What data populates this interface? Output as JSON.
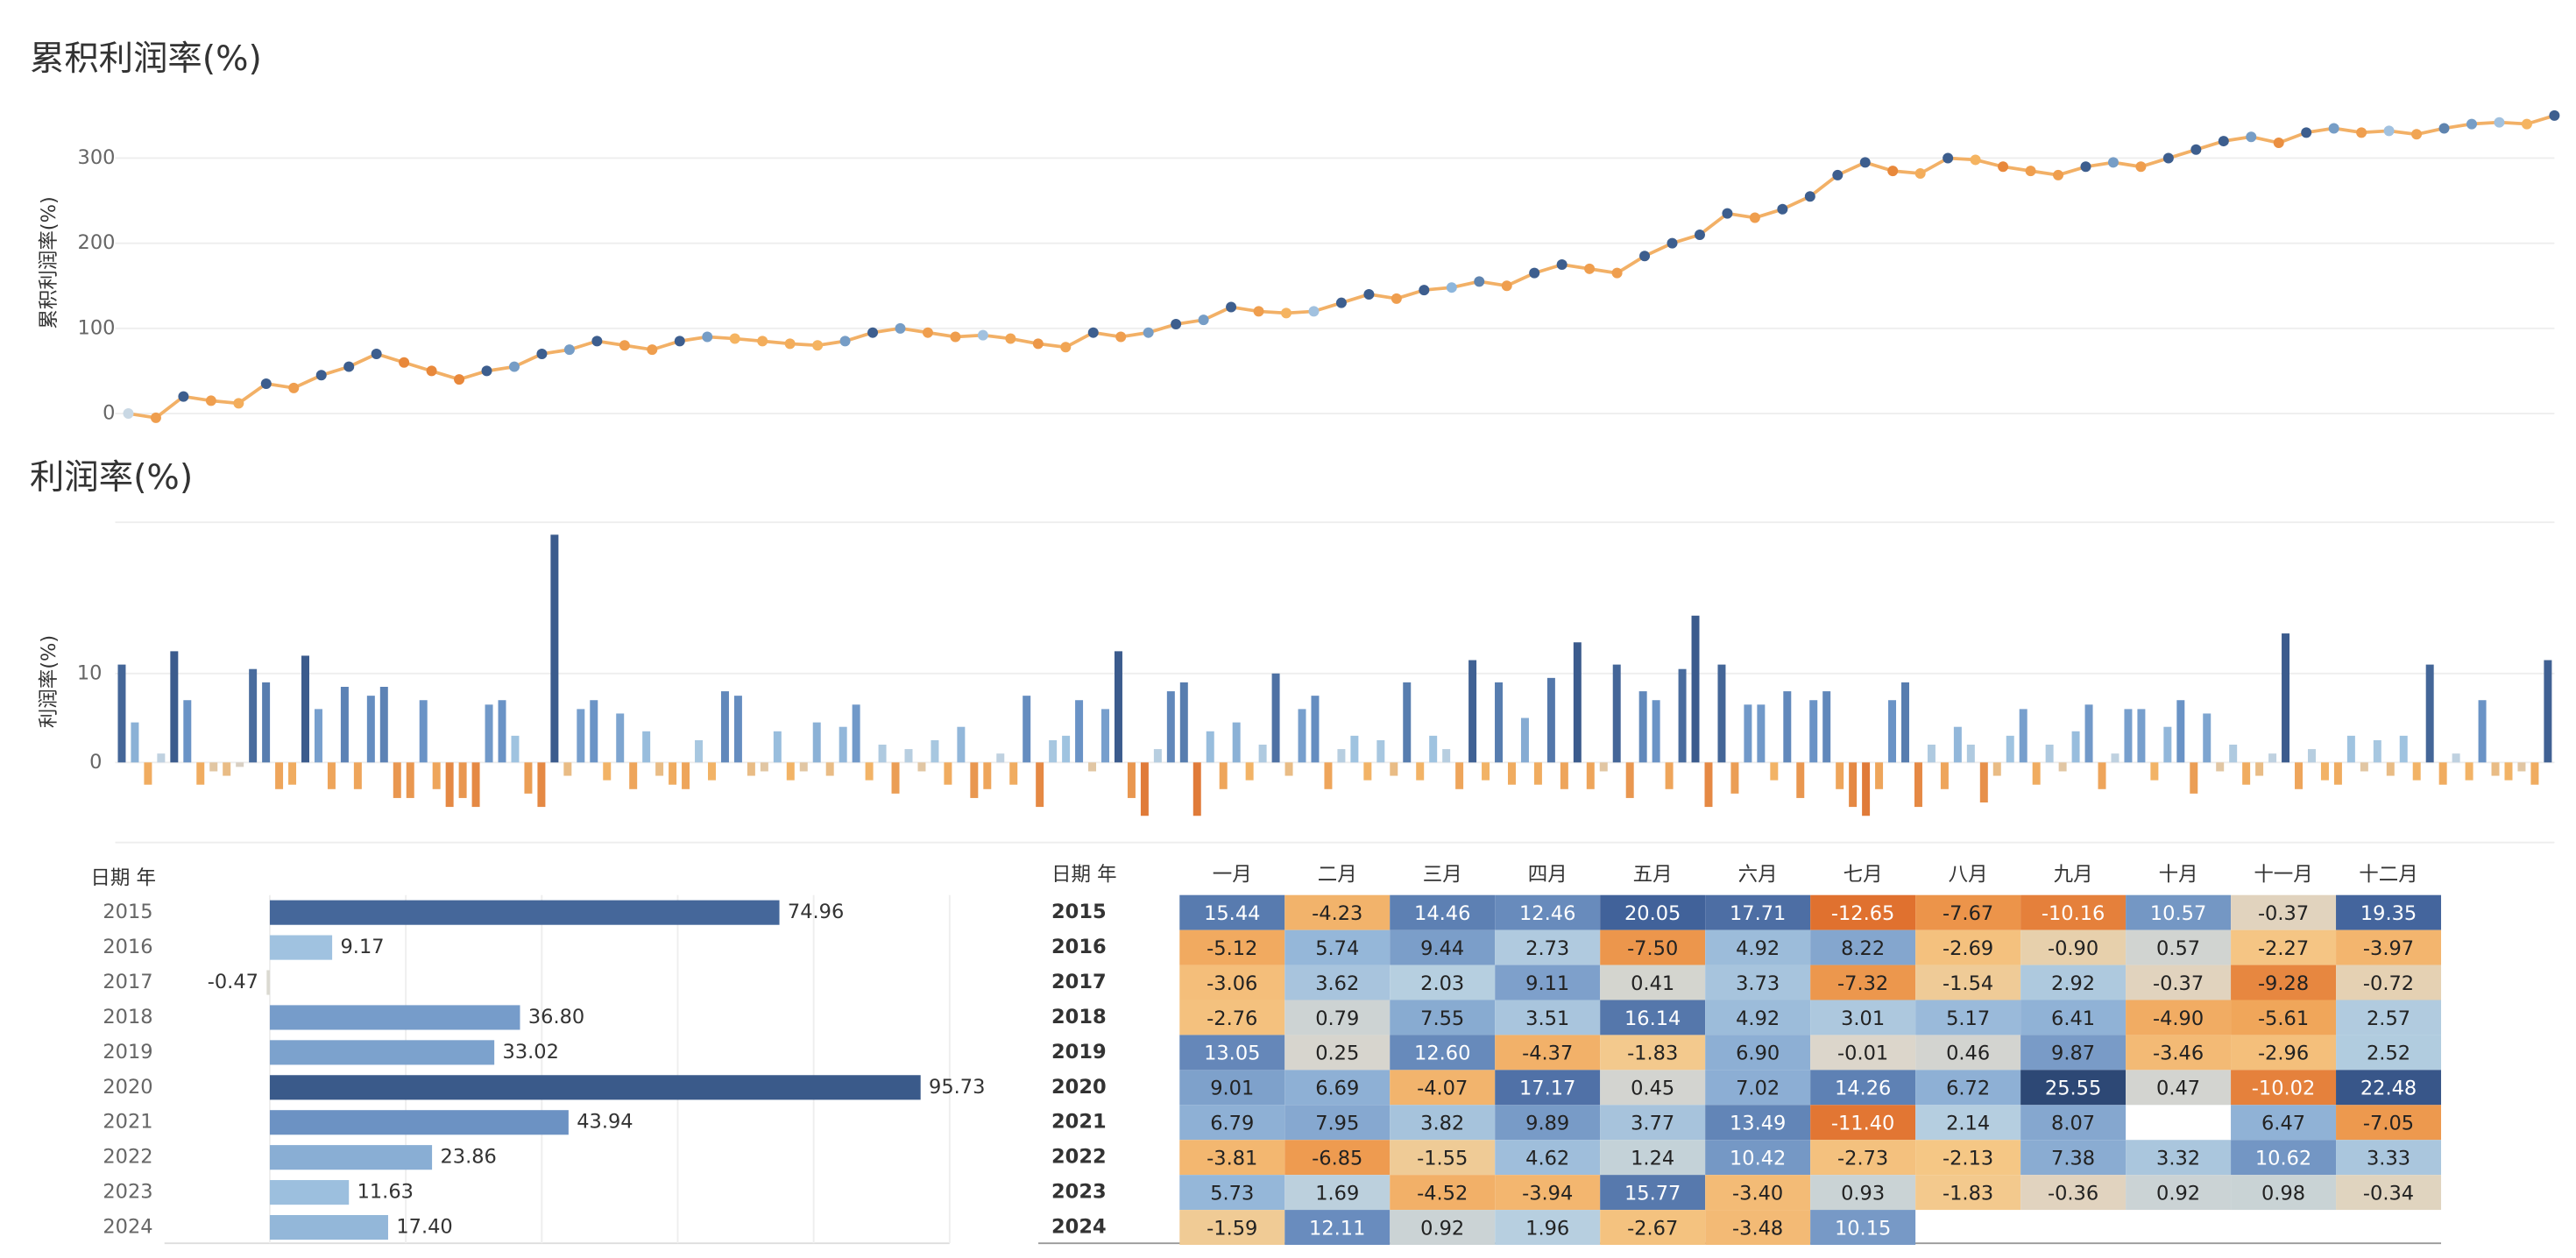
{
  "chart_data": [
    {
      "type": "line",
      "title": "累积利润率(%)",
      "y_label": "累积利润率(%)",
      "ylim": [
        -12,
        370
      ],
      "yticks": [
        0,
        100,
        200,
        300
      ],
      "grid": true,
      "color_scale": [
        {
          "value": -8,
          "color": "#e8883b"
        },
        {
          "value": -2,
          "color": "#f5b461"
        },
        {
          "value": 0,
          "color": "#c9d8e4"
        },
        {
          "value": 3,
          "color": "#8db6dc"
        },
        {
          "value": 10,
          "color": "#3d5e8e"
        }
      ],
      "values": [
        0,
        -5,
        20,
        15,
        12,
        35,
        30,
        45,
        55,
        70,
        60,
        50,
        40,
        50,
        55,
        70,
        75,
        85,
        80,
        75,
        85,
        90,
        88,
        85,
        82,
        80,
        85,
        95,
        100,
        95,
        90,
        92,
        88,
        82,
        78,
        95,
        90,
        95,
        105,
        110,
        125,
        120,
        118,
        120,
        130,
        140,
        135,
        145,
        148,
        155,
        150,
        165,
        175,
        170,
        165,
        185,
        200,
        210,
        235,
        230,
        240,
        255,
        280,
        295,
        285,
        282,
        300,
        298,
        290,
        285,
        280,
        290,
        295,
        290,
        300,
        310,
        320,
        325,
        318,
        330,
        335,
        330,
        332,
        328,
        335,
        340,
        342,
        340,
        350
      ]
    },
    {
      "type": "bar",
      "title": "利润率(%)",
      "y_label": "利润率(%)",
      "ylim": [
        -9,
        27
      ],
      "yticks": [
        0,
        10
      ],
      "grid": true,
      "color_scale": [
        {
          "value": -6,
          "color": "#e07b39"
        },
        {
          "value": -2,
          "color": "#f2b366"
        },
        {
          "value": 0,
          "color": "#cfd8e0"
        },
        {
          "value": 3,
          "color": "#9fc3e0"
        },
        {
          "value": 7,
          "color": "#6a93c6"
        },
        {
          "value": 12,
          "color": "#3b5b8d"
        }
      ],
      "values": [
        11,
        4.5,
        -2.5,
        1,
        12.5,
        7,
        -2.5,
        -1,
        -1.5,
        -0.5,
        10.5,
        9,
        -3,
        -2.5,
        12,
        6,
        -3,
        8.5,
        -3,
        7.5,
        8.5,
        -4,
        -4,
        7,
        -3,
        -5,
        -4,
        -5,
        6.5,
        7,
        3,
        -3.5,
        -5,
        25.6,
        -1.5,
        6,
        7,
        -2,
        5.5,
        -3,
        3.5,
        -1.5,
        -2.5,
        -3,
        2.5,
        -2,
        8,
        7.5,
        -1.5,
        -1,
        3.5,
        -2,
        -1,
        4.5,
        -1.5,
        4,
        6.5,
        -2,
        2,
        -3.5,
        1.5,
        -1,
        2.5,
        -2.5,
        4,
        -4,
        -3,
        1,
        -2.5,
        7.5,
        -5,
        2.5,
        3,
        7,
        -1,
        6,
        12.5,
        -4,
        -6,
        1.5,
        8,
        9,
        -6,
        3.5,
        -3,
        4.5,
        -2,
        2,
        10,
        -1.5,
        6,
        7.5,
        -3,
        1.5,
        3,
        -2,
        2.5,
        -1.5,
        9,
        -2,
        3,
        1.5,
        -3,
        11.5,
        -2,
        9,
        -2.5,
        5,
        -2.5,
        9.5,
        -3,
        13.5,
        -3,
        -1,
        11,
        -4,
        8,
        7,
        -3,
        10.5,
        16.5,
        -5,
        11,
        -3.5,
        6.5,
        6.5,
        -2,
        8,
        -4,
        7,
        8,
        -3,
        -5,
        -6,
        -3,
        7,
        9,
        -5,
        2,
        -3,
        4,
        2,
        -4.5,
        -1.5,
        3,
        6,
        -2.5,
        2,
        -1,
        3.5,
        6.5,
        -3,
        1,
        6,
        6,
        -2,
        4,
        7,
        -3.5,
        5.5,
        -1,
        2,
        -2.5,
        -1.5,
        1,
        14.5,
        -3,
        1.5,
        -2,
        -2.5,
        3,
        -1,
        2.5,
        -1.5,
        3,
        -2,
        11,
        -2.5,
        1,
        -2,
        7,
        -1.5,
        -2,
        -1,
        -2.5,
        11.5
      ]
    },
    {
      "type": "hbar",
      "header": "日期 年",
      "categories": [
        "2015",
        "2016",
        "2017",
        "2018",
        "2019",
        "2020",
        "2021",
        "2022",
        "2023",
        "2024"
      ],
      "values": [
        74.96,
        9.17,
        -0.47,
        36.8,
        33.02,
        95.73,
        43.94,
        23.86,
        11.63,
        17.4
      ],
      "value_labels": [
        "74.96",
        "9.17",
        "-0.47",
        "36.80",
        "33.02",
        "95.73",
        "43.94",
        "23.86",
        "11.63",
        "17.40"
      ],
      "xlim": [
        -15.5,
        100
      ],
      "xticks": [
        0,
        20,
        40,
        60,
        80,
        100
      ],
      "color_scale": [
        {
          "value": -1,
          "color": "#e0dccf"
        },
        {
          "value": 5,
          "color": "#a6c8e3"
        },
        {
          "value": 40,
          "color": "#7198c8"
        },
        {
          "value": 75,
          "color": "#45679a"
        },
        {
          "value": 96,
          "color": "#3a5a8a"
        }
      ]
    },
    {
      "type": "heatmap",
      "header": "日期 年",
      "columns": [
        "一月",
        "二月",
        "三月",
        "四月",
        "五月",
        "六月",
        "七月",
        "八月",
        "九月",
        "十月",
        "十一月",
        "十二月"
      ],
      "rows": [
        "2015",
        "2016",
        "2017",
        "2018",
        "2019",
        "2020",
        "2021",
        "2022",
        "2023",
        "2024"
      ],
      "color_scale": [
        {
          "value": -12,
          "color": "#e0712f"
        },
        {
          "value": -6,
          "color": "#f0a255"
        },
        {
          "value": -2,
          "color": "#f5c887"
        },
        {
          "value": 0,
          "color": "#dcd6cb"
        },
        {
          "value": 2,
          "color": "#b6cfe0"
        },
        {
          "value": 6,
          "color": "#93b5d8"
        },
        {
          "value": 12,
          "color": "#6a8dbe"
        },
        {
          "value": 20,
          "color": "#41629a"
        },
        {
          "value": 26,
          "color": "#2b4672"
        }
      ],
      "values": [
        [
          15.44,
          -4.23,
          14.46,
          12.46,
          20.05,
          17.71,
          -12.65,
          -7.67,
          -10.16,
          10.57,
          -0.37,
          19.35
        ],
        [
          -5.12,
          5.74,
          9.44,
          2.73,
          -7.5,
          4.92,
          8.22,
          -2.69,
          -0.9,
          0.57,
          -2.27,
          -3.97
        ],
        [
          -3.06,
          3.62,
          2.03,
          9.11,
          0.41,
          3.73,
          -7.32,
          -1.54,
          2.92,
          -0.37,
          -9.28,
          -0.72
        ],
        [
          -2.76,
          0.79,
          7.55,
          3.51,
          16.14,
          4.92,
          3.01,
          5.17,
          6.41,
          -4.9,
          -5.61,
          2.57
        ],
        [
          13.05,
          0.25,
          12.6,
          -4.37,
          -1.83,
          6.9,
          -0.01,
          0.46,
          9.87,
          -3.46,
          -2.96,
          2.52
        ],
        [
          9.01,
          6.69,
          -4.07,
          17.17,
          0.45,
          7.02,
          14.26,
          6.72,
          25.55,
          0.47,
          -10.02,
          22.48
        ],
        [
          6.79,
          7.95,
          3.82,
          9.89,
          3.77,
          13.49,
          -11.4,
          2.14,
          8.07,
          null,
          6.47,
          -7.05
        ],
        [
          -3.81,
          -6.85,
          -1.55,
          4.62,
          1.24,
          10.42,
          -2.73,
          -2.13,
          7.38,
          3.32,
          10.62,
          3.33
        ],
        [
          5.73,
          1.69,
          -4.52,
          -3.94,
          15.77,
          -3.4,
          0.93,
          -1.83,
          -0.36,
          0.92,
          0.98,
          -0.34
        ],
        [
          -1.59,
          12.11,
          0.92,
          1.96,
          -2.67,
          -3.48,
          10.15,
          null,
          null,
          null,
          null,
          null
        ]
      ],
      "value_labels": [
        [
          "15.44",
          "-4.23",
          "14.46",
          "12.46",
          "20.05",
          "17.71",
          "-12.65",
          "-7.67",
          "-10.16",
          "10.57",
          "-0.37",
          "19.35"
        ],
        [
          "-5.12",
          "5.74",
          "9.44",
          "2.73",
          "-7.50",
          "4.92",
          "8.22",
          "-2.69",
          "-0.90",
          "0.57",
          "-2.27",
          "-3.97"
        ],
        [
          "-3.06",
          "3.62",
          "2.03",
          "9.11",
          "0.41",
          "3.73",
          "-7.32",
          "-1.54",
          "2.92",
          "-0.37",
          "-9.28",
          "-0.72"
        ],
        [
          "-2.76",
          "0.79",
          "7.55",
          "3.51",
          "16.14",
          "4.92",
          "3.01",
          "5.17",
          "6.41",
          "-4.90",
          "-5.61",
          "2.57"
        ],
        [
          "13.05",
          "0.25",
          "12.60",
          "-4.37",
          "-1.83",
          "6.90",
          "-0.01",
          "0.46",
          "9.87",
          "-3.46",
          "-2.96",
          "2.52"
        ],
        [
          "9.01",
          "6.69",
          "-4.07",
          "17.17",
          "0.45",
          "7.02",
          "14.26",
          "6.72",
          "25.55",
          "0.47",
          "-10.02",
          "22.48"
        ],
        [
          "6.79",
          "7.95",
          "3.82",
          "9.89",
          "3.77",
          "13.49",
          "-11.40",
          "2.14",
          "8.07",
          null,
          "6.47",
          "-7.05"
        ],
        [
          "-3.81",
          "-6.85",
          "-1.55",
          "4.62",
          "1.24",
          "10.42",
          "-2.73",
          "-2.13",
          "7.38",
          "3.32",
          "10.62",
          "3.33"
        ],
        [
          "5.73",
          "1.69",
          "-4.52",
          "-3.94",
          "15.77",
          "-3.40",
          "0.93",
          "-1.83",
          "-0.36",
          "0.92",
          "0.98",
          "-0.34"
        ],
        [
          "-1.59",
          "12.11",
          "0.92",
          "1.96",
          "-2.67",
          "-3.48",
          "10.15",
          null,
          null,
          null,
          null,
          null
        ]
      ]
    }
  ]
}
